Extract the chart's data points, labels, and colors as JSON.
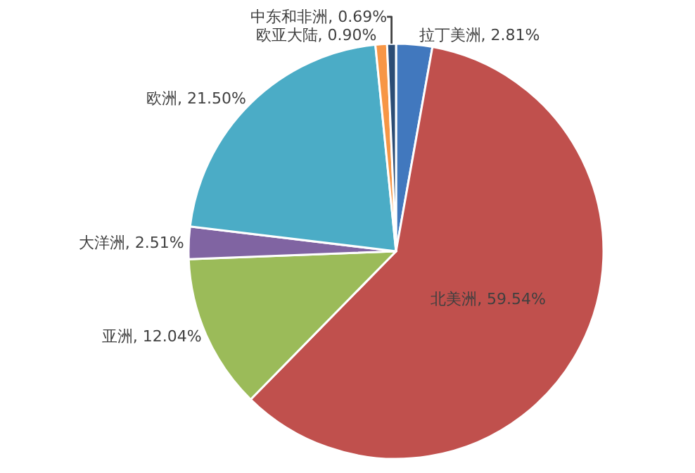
{
  "chart_data": {
    "type": "pie",
    "categories": [
      "拉丁美洲",
      "北美洲",
      "亚洲",
      "大洋洲",
      "欧洲",
      "欧亚大陆",
      "中东和非洲"
    ],
    "values": [
      2.81,
      59.54,
      12.04,
      2.51,
      21.5,
      0.9,
      0.69
    ],
    "value_labels": [
      "2.81%",
      "59.54%",
      "12.04%",
      "2.51%",
      "21.50%",
      "0.90%",
      "0.69%"
    ],
    "colors": [
      "#4178be",
      "#c0504d",
      "#9bbb59",
      "#8064a2",
      "#4bacc6",
      "#f79646",
      "#2c4d75"
    ],
    "legend": false
  }
}
